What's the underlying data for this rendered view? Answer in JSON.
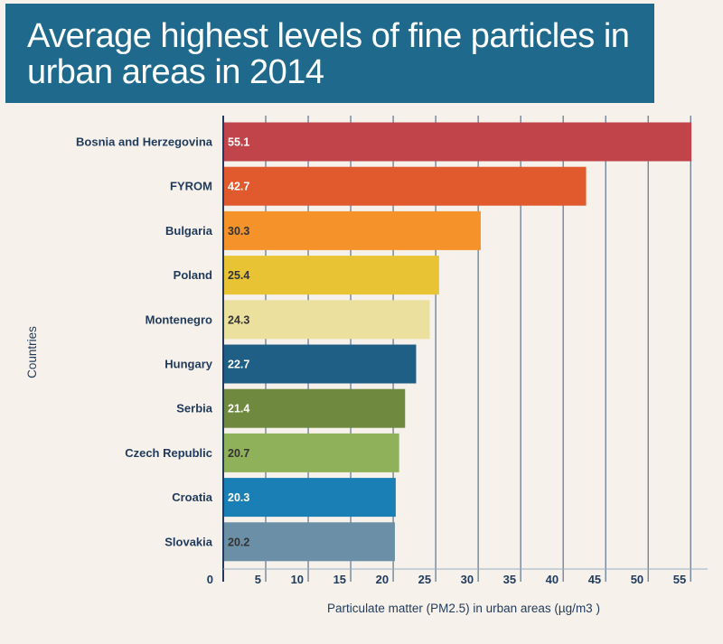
{
  "header": {
    "title_line1": "Average highest levels of fine particles in",
    "title_line2": "urban areas in 2014",
    "background_color": "#1f6a8c"
  },
  "chart_data": {
    "type": "bar",
    "orientation": "horizontal",
    "title": "Average highest levels of fine particles in urban areas in 2014",
    "xlabel": "Particulate matter (PM2.5) in urban areas (µg/m3 )",
    "ylabel": "Countries",
    "xlim": [
      0,
      57
    ],
    "xticks": [
      0,
      5,
      10,
      15,
      20,
      25,
      30,
      35,
      40,
      45,
      50,
      55
    ],
    "grid": true,
    "categories": [
      "Bosnia and Herzegovina",
      "FYROM",
      "Bulgaria",
      "Poland",
      "Montenegro",
      "Hungary",
      "Serbia",
      "Czech Republic",
      "Croatia",
      "Slovakia"
    ],
    "values": [
      55.1,
      42.7,
      30.3,
      25.4,
      24.3,
      22.7,
      21.4,
      20.7,
      20.3,
      20.2
    ],
    "value_labels": [
      "55.1",
      "42.7",
      "30.3",
      "25.4",
      "24.3",
      "22.7",
      "21.4",
      "20.7",
      "20.3",
      "20.2"
    ],
    "colors": [
      "#c0444a",
      "#e05a2d",
      "#f5922a",
      "#e8c434",
      "#ece09e",
      "#1f5f85",
      "#6f8a3e",
      "#8fb15a",
      "#1a7fb5",
      "#6a8fa6"
    ],
    "label_colors": [
      "#ffffff",
      "#ffffff",
      "#333333",
      "#333333",
      "#333333",
      "#ffffff",
      "#ffffff",
      "#333333",
      "#ffffff",
      "#333333"
    ]
  }
}
